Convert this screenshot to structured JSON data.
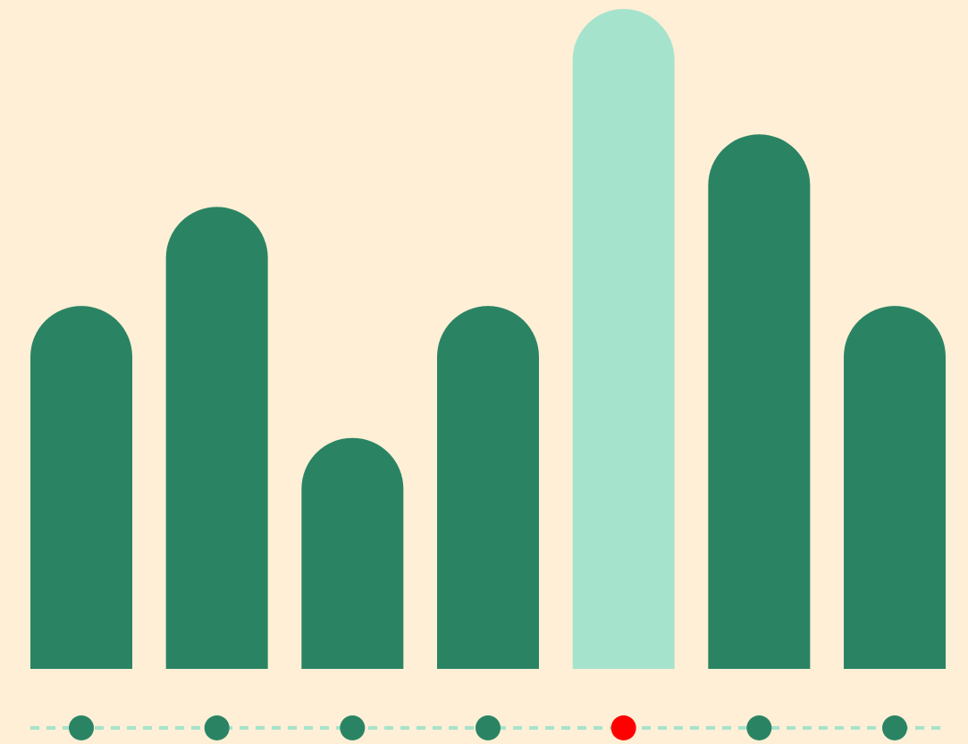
{
  "chart_data": {
    "type": "bar",
    "values": [
      55,
      70,
      35,
      55,
      100,
      81,
      55
    ],
    "color": "#2a8464",
    "highlight_color": "#a6e3cc",
    "highlight_index": 4,
    "dot_color": "#2a8464",
    "active_dot_color": "#ff0000",
    "track_color": "#a6e3cc"
  }
}
